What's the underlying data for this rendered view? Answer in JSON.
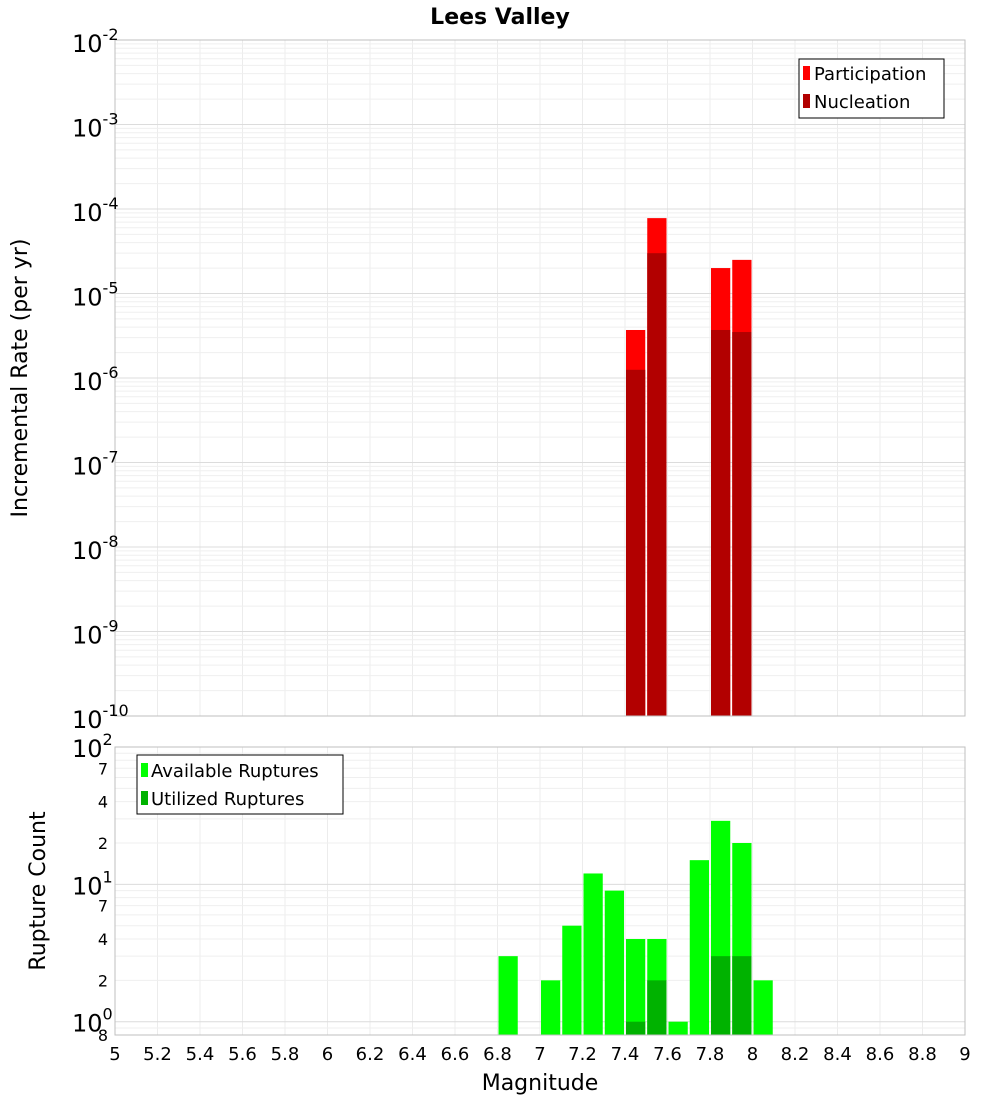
{
  "chart_data": [
    {
      "type": "bar",
      "title": "Lees Valley",
      "xlabel": "",
      "ylabel": "Incremental Rate (per yr)",
      "yscale": "log",
      "ylim_exp": [
        -10,
        -2
      ],
      "xlim": [
        5,
        9
      ],
      "bin_width": 0.1,
      "grid": true,
      "legend_position": "top-right",
      "y_tick_labels": [
        {
          "base": "10",
          "exp": "-2"
        },
        {
          "base": "10",
          "exp": "-3"
        },
        {
          "base": "10",
          "exp": "-4"
        },
        {
          "base": "10",
          "exp": "-5"
        },
        {
          "base": "10",
          "exp": "-6"
        },
        {
          "base": "10",
          "exp": "-7"
        },
        {
          "base": "10",
          "exp": "-8"
        },
        {
          "base": "10",
          "exp": "-9"
        },
        {
          "base": "10",
          "exp": "-10"
        }
      ],
      "series": [
        {
          "name": "Participation",
          "color": "#ff0000",
          "x": [
            7.45,
            7.55,
            7.85,
            7.95
          ],
          "values": [
            3.7e-06,
            7.8e-05,
            2e-05,
            2.5e-05
          ]
        },
        {
          "name": "Nucleation",
          "color": "#b20000",
          "x": [
            7.45,
            7.55,
            7.85,
            7.95
          ],
          "values": [
            1.25e-06,
            3e-05,
            3.7e-06,
            3.5e-06
          ]
        }
      ]
    },
    {
      "type": "bar",
      "title": "",
      "xlabel": "Magnitude",
      "ylabel": "Rupture Count",
      "yscale": "log",
      "ylim": [
        0.8,
        100
      ],
      "xlim": [
        5,
        9
      ],
      "bin_width": 0.1,
      "grid": true,
      "legend_position": "top-left",
      "x_ticks": [
        "5",
        "5.2",
        "5.4",
        "5.6",
        "5.8",
        "6",
        "6.2",
        "6.4",
        "6.6",
        "6.8",
        "7",
        "7.2",
        "7.4",
        "7.6",
        "7.8",
        "8",
        "8.2",
        "8.4",
        "8.6",
        "8.8",
        "9"
      ],
      "y_major_labels": [
        {
          "base": "10",
          "exp": "2",
          "value": 100
        },
        {
          "base": "10",
          "exp": "1",
          "value": 10
        },
        {
          "base": "10",
          "exp": "0",
          "value": 1
        }
      ],
      "y_minor_labels": [
        {
          "label": "7",
          "value": 70
        },
        {
          "label": "4",
          "value": 40
        },
        {
          "label": "2",
          "value": 20
        },
        {
          "label": "7",
          "value": 7
        },
        {
          "label": "4",
          "value": 4
        },
        {
          "label": "2",
          "value": 2
        },
        {
          "label": "8",
          "value": 0.8
        }
      ],
      "series": [
        {
          "name": "Available Ruptures",
          "color": "#00ff00",
          "x": [
            6.85,
            7.05,
            7.15,
            7.25,
            7.35,
            7.45,
            7.55,
            7.65,
            7.75,
            7.85,
            7.95,
            8.05
          ],
          "values": [
            3,
            2,
            5,
            12,
            9,
            4,
            4,
            1,
            15,
            29,
            20,
            2
          ]
        },
        {
          "name": "Utilized Ruptures",
          "color": "#00b200",
          "x": [
            7.45,
            7.55,
            7.85,
            7.95
          ],
          "values": [
            1,
            2,
            3,
            3
          ]
        }
      ]
    }
  ]
}
